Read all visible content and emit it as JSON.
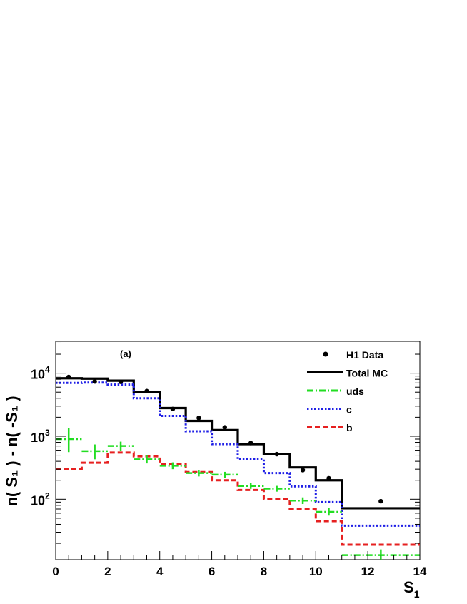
{
  "chart_data": {
    "type": "histogram",
    "annotation": "(a)",
    "ylabel": "n( S₁ ) - n( -S₁ )",
    "xlabel": "S₁",
    "xlabel_main": "S",
    "xlabel_sub": "1",
    "xlim": [
      0,
      14
    ],
    "ylim": [
      11,
      32000
    ],
    "yscale": "log",
    "x_ticks": [
      "0",
      "2",
      "4",
      "6",
      "8",
      "10",
      "12",
      "14"
    ],
    "y_ticks": [
      {
        "base": "10",
        "exp": "2",
        "value": 100
      },
      {
        "base": "10",
        "exp": "3",
        "value": 1000
      },
      {
        "base": "10",
        "exp": "4",
        "value": 10000
      }
    ],
    "legend_position": "top-right",
    "bin_edges": [
      0,
      1,
      2,
      3,
      4,
      5,
      6,
      7,
      8,
      9,
      10,
      11,
      14
    ],
    "series": [
      {
        "name": "Total MC",
        "kind": "step",
        "color": "#000000",
        "dash": "solid",
        "values": [
          8300,
          8200,
          7600,
          5000,
          2800,
          1750,
          1250,
          750,
          520,
          320,
          200,
          72
        ]
      },
      {
        "name": "c",
        "kind": "step",
        "color": "#1f1fe6",
        "dash": "dotted",
        "values": [
          7000,
          7100,
          6600,
          4000,
          2100,
          1200,
          750,
          430,
          260,
          160,
          90,
          38
        ]
      },
      {
        "name": "b",
        "kind": "step",
        "color": "#e62020",
        "dash": "dashed",
        "values": [
          300,
          380,
          550,
          480,
          360,
          270,
          200,
          140,
          100,
          70,
          45,
          19
        ]
      },
      {
        "name": "uds",
        "kind": "crosses",
        "color": "#22dd22",
        "dash": "dashdot",
        "points": [
          {
            "x": 0.5,
            "xlo": 0,
            "xhi": 1,
            "y": 900,
            "ylo": 560,
            "yhi": 1350
          },
          {
            "x": 1.5,
            "xlo": 1,
            "xhi": 2,
            "y": 580,
            "ylo": 430,
            "yhi": 740
          },
          {
            "x": 2.5,
            "xlo": 2,
            "xhi": 3,
            "y": 700,
            "ylo": 590,
            "yhi": 820
          },
          {
            "x": 3.5,
            "xlo": 3,
            "xhi": 4,
            "y": 430,
            "ylo": 370,
            "yhi": 500
          },
          {
            "x": 4.5,
            "xlo": 4,
            "xhi": 5,
            "y": 340,
            "ylo": 300,
            "yhi": 385
          },
          {
            "x": 5.5,
            "xlo": 5,
            "xhi": 6,
            "y": 260,
            "ylo": 230,
            "yhi": 290
          },
          {
            "x": 6.5,
            "xlo": 6,
            "xhi": 7,
            "y": 245,
            "ylo": 220,
            "yhi": 272
          },
          {
            "x": 7.5,
            "xlo": 7,
            "xhi": 8,
            "y": 162,
            "ylo": 146,
            "yhi": 180
          },
          {
            "x": 8.5,
            "xlo": 8,
            "xhi": 9,
            "y": 147,
            "ylo": 132,
            "yhi": 163
          },
          {
            "x": 9.5,
            "xlo": 9,
            "xhi": 10,
            "y": 95,
            "ylo": 84,
            "yhi": 107
          },
          {
            "x": 10.5,
            "xlo": 10,
            "xhi": 11,
            "y": 63,
            "ylo": 55,
            "yhi": 72
          },
          {
            "x": 12.5,
            "xlo": 11,
            "xhi": 14,
            "y": 13,
            "ylo": 11,
            "yhi": 16
          }
        ]
      },
      {
        "name": "H1 Data",
        "kind": "points",
        "color": "#000000",
        "points": [
          {
            "x": 0.5,
            "y": 8700,
            "ylo": 8400,
            "yhi": 9000
          },
          {
            "x": 1.5,
            "y": 7400,
            "ylo": 7150,
            "yhi": 7650
          },
          {
            "x": 2.5,
            "y": 7300,
            "ylo": 7050,
            "yhi": 7550
          },
          {
            "x": 3.5,
            "y": 5200,
            "ylo": 5000,
            "yhi": 5400
          },
          {
            "x": 4.5,
            "y": 2700,
            "ylo": 2600,
            "yhi": 2800
          },
          {
            "x": 5.5,
            "y": 1950,
            "ylo": 1870,
            "yhi": 2030
          },
          {
            "x": 6.5,
            "y": 1380,
            "ylo": 1320,
            "yhi": 1440
          },
          {
            "x": 7.5,
            "y": 780,
            "ylo": 745,
            "yhi": 815
          },
          {
            "x": 8.5,
            "y": 520,
            "ylo": 495,
            "yhi": 545
          },
          {
            "x": 9.5,
            "y": 290,
            "ylo": 272,
            "yhi": 308
          },
          {
            "x": 10.5,
            "y": 215,
            "ylo": 200,
            "yhi": 230
          },
          {
            "x": 12.5,
            "y": 93,
            "ylo": 86,
            "yhi": 100
          }
        ]
      }
    ],
    "legend": [
      {
        "label": "H1 Data",
        "marker": "dot"
      },
      {
        "label": "Total MC",
        "marker": "line-solid"
      },
      {
        "label": "uds",
        "marker": "line-dashdot"
      },
      {
        "label": "c",
        "marker": "line-dotted"
      },
      {
        "label": "b",
        "marker": "line-dashed"
      }
    ]
  }
}
